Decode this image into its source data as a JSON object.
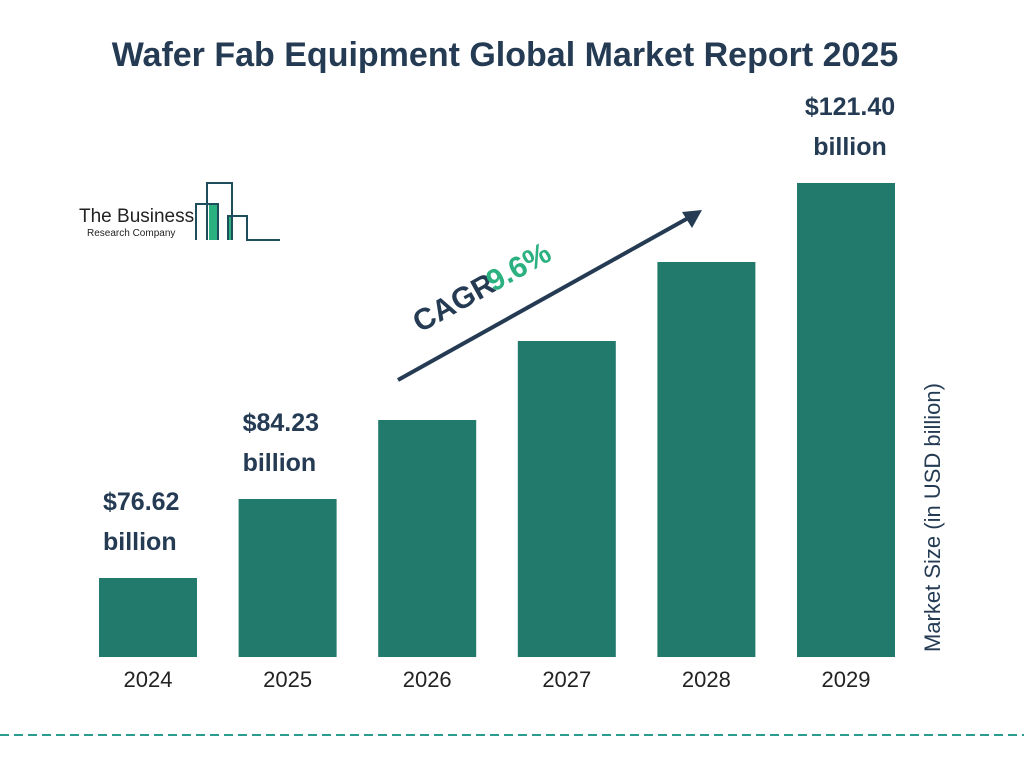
{
  "chart_data": {
    "type": "bar",
    "title": "Wafer Fab Equipment Global Market Report 2025",
    "categories": [
      "2024",
      "2025",
      "2026",
      "2027",
      "2028",
      "2029"
    ],
    "values": [
      76.62,
      84.23,
      null,
      null,
      null,
      121.4
    ],
    "data_labels": [
      [
        "$76.62",
        "billion"
      ],
      [
        "$84.23",
        "billion"
      ],
      null,
      null,
      null,
      [
        "$121.40",
        "billion"
      ]
    ],
    "ylabel": "Market Size (in USD billion)",
    "annotation": {
      "prefix": "CAGR",
      "value": "9.6%"
    },
    "grid": false,
    "colors": {
      "bar": "#217a6b",
      "title": "#243b53",
      "cagr": "#2bb07f",
      "dashed_line": "#2a9d8f"
    }
  },
  "logo": {
    "line1": "The Business",
    "line2": "Research Company"
  }
}
